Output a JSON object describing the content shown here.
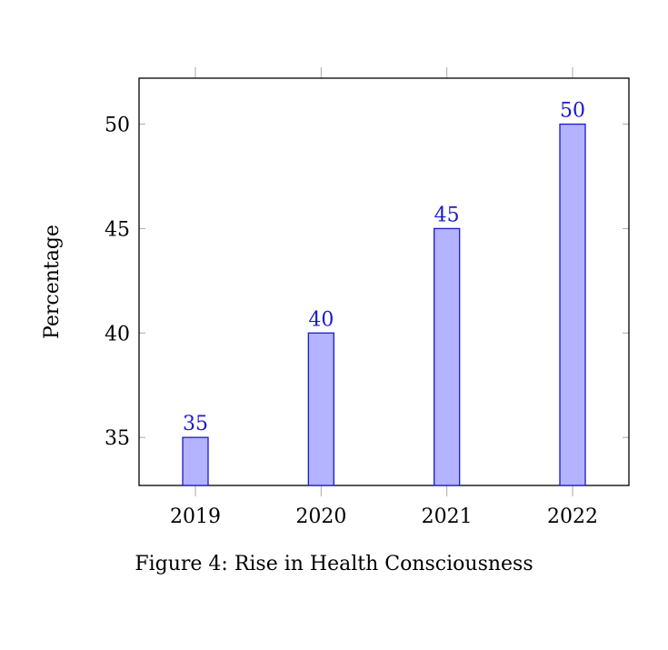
{
  "chart_data": {
    "type": "bar",
    "categories": [
      "2019",
      "2020",
      "2021",
      "2022"
    ],
    "values": [
      35,
      40,
      45,
      50
    ],
    "title": "",
    "xlabel": "",
    "ylabel": "Percentage",
    "ylim": [
      32.7,
      52.2
    ],
    "yticks": [
      "35",
      "40",
      "45",
      "50"
    ],
    "data_labels": [
      "35",
      "40",
      "45",
      "50"
    ],
    "grid": false,
    "bar_fill": "#b3b3ff",
    "bar_stroke": "#1a1acc",
    "label_color": "#1a1acc"
  },
  "caption": "Figure 4: Rise in Health Consciousness"
}
